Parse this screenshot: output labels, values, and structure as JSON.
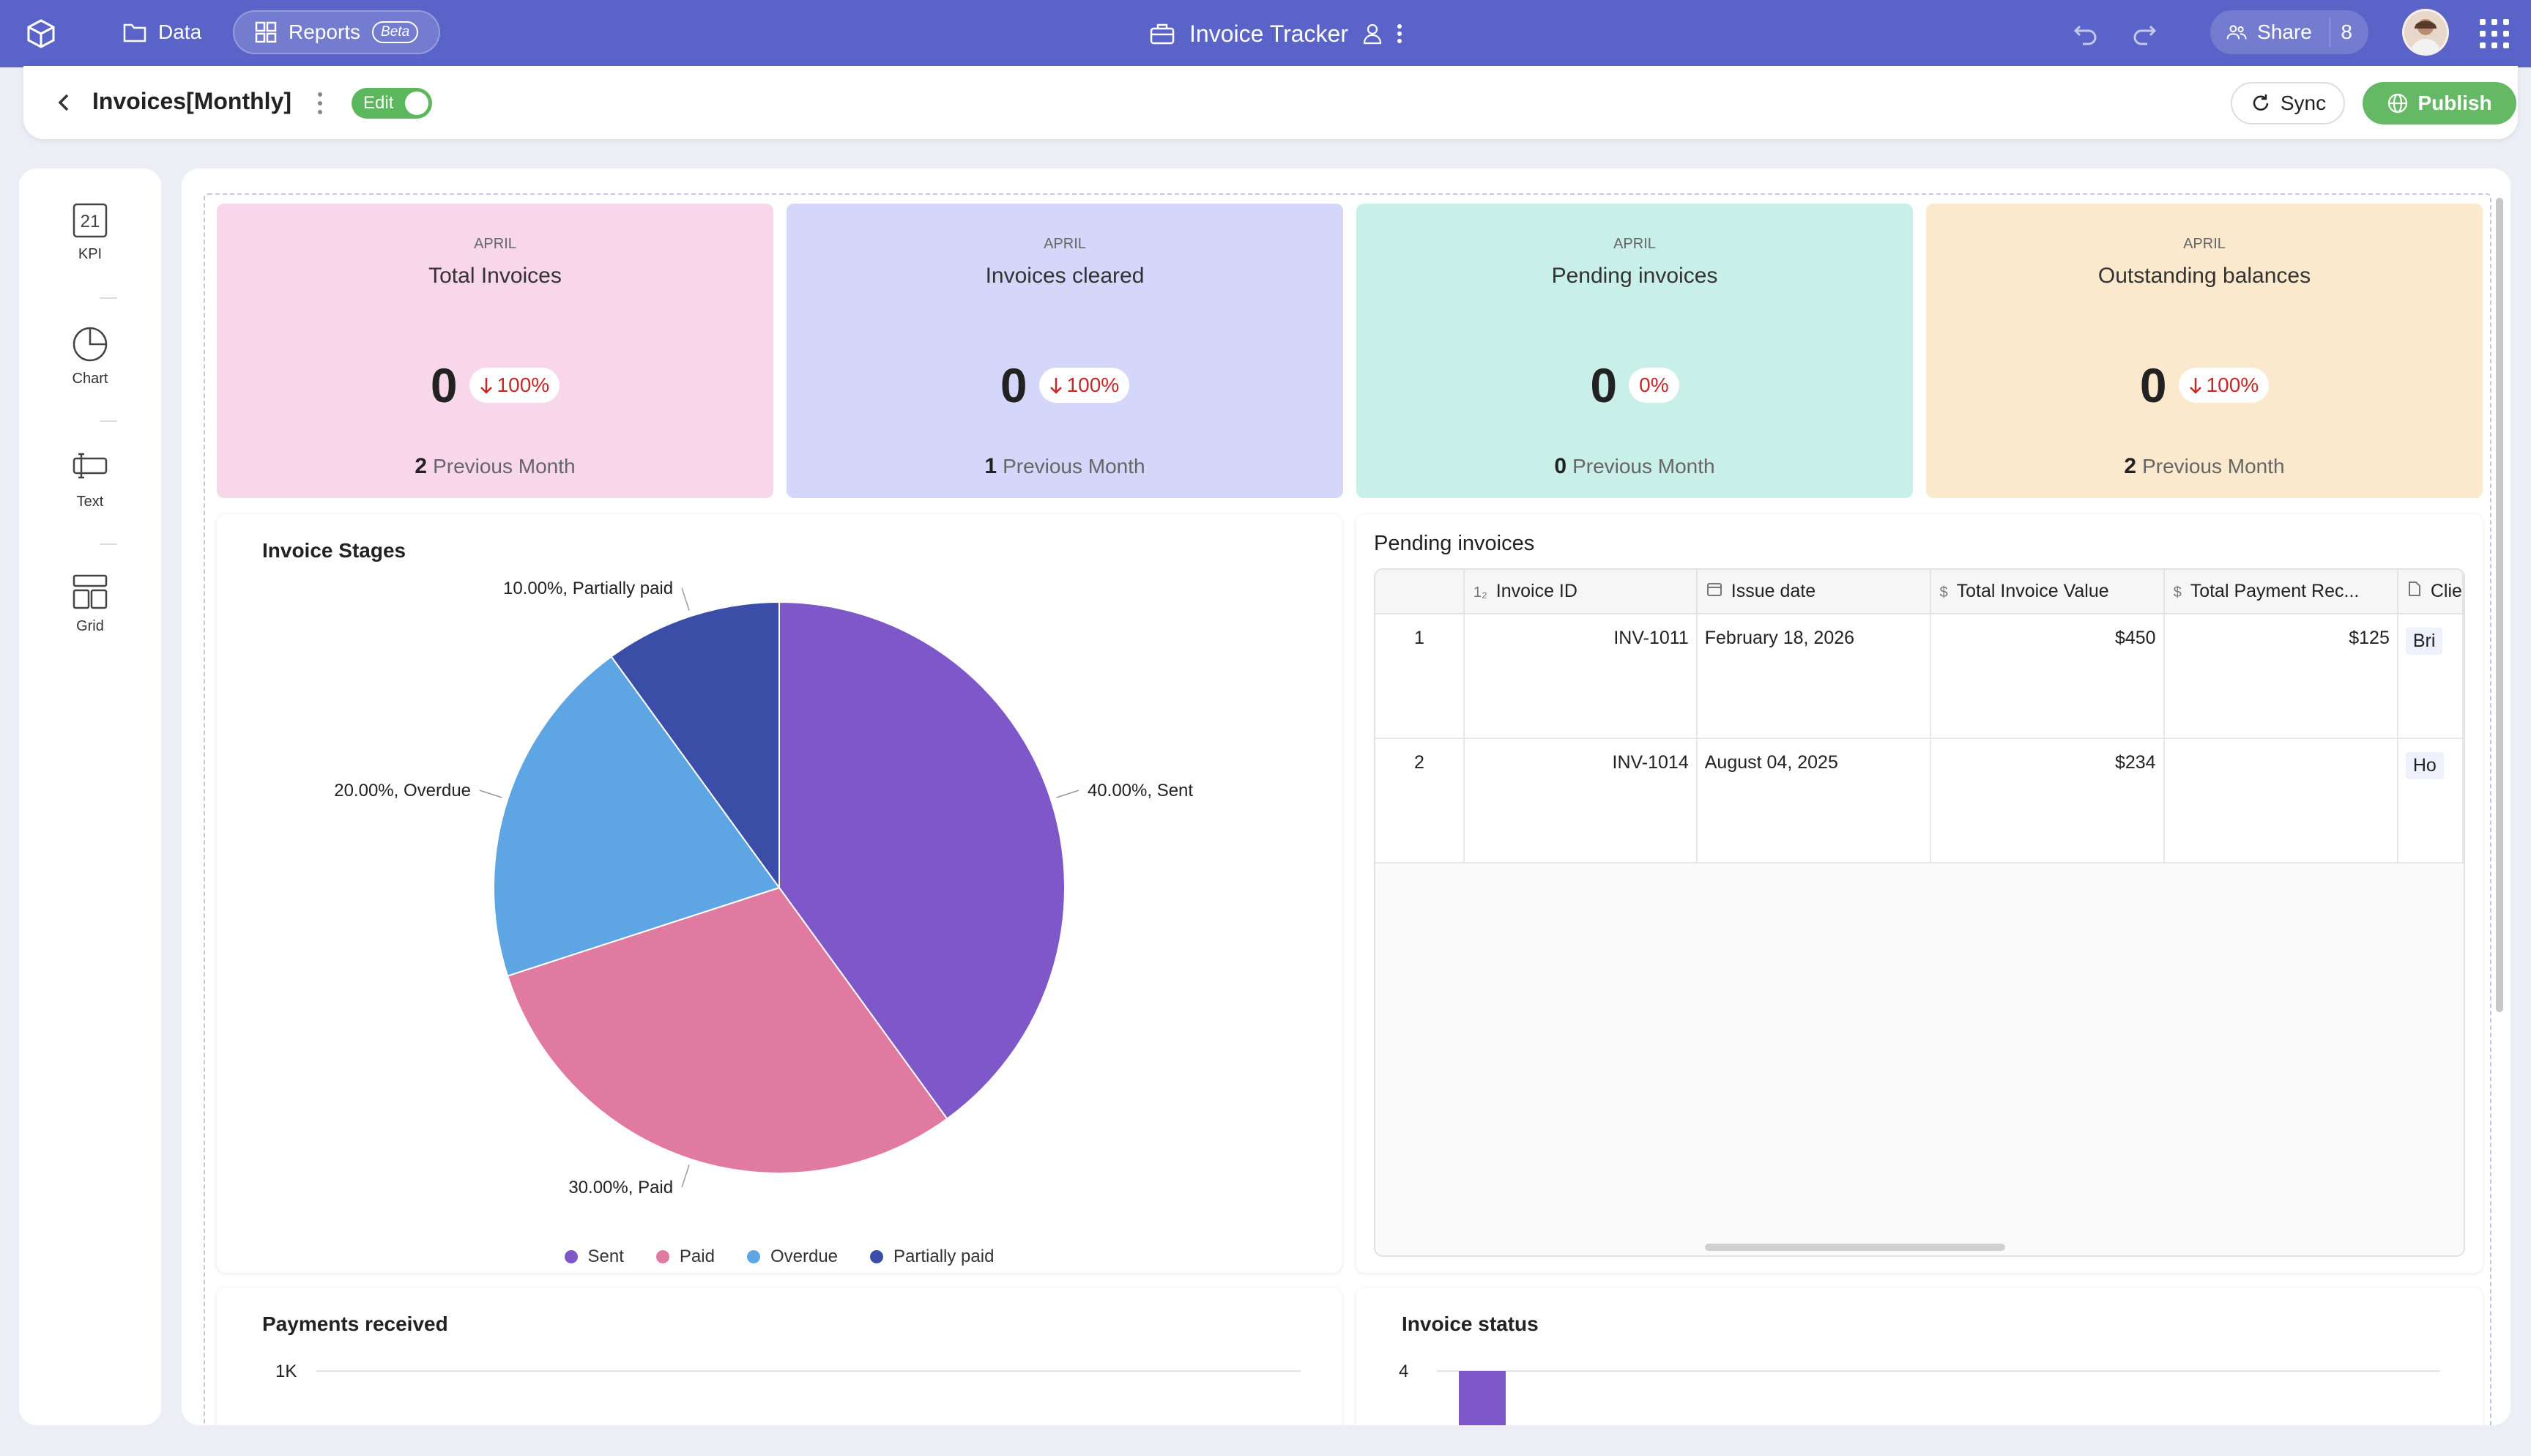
{
  "topbar": {
    "nav_data": "Data",
    "nav_reports": "Reports",
    "beta_badge": "Beta",
    "app_title": "Invoice Tracker",
    "share_label": "Share",
    "share_count": "8"
  },
  "subheader": {
    "title": "Invoices[Monthly]",
    "edit_label": "Edit",
    "sync_label": "Sync",
    "publish_label": "Publish"
  },
  "rail": {
    "kpi_label": "KPI",
    "kpi_icon_text": "21",
    "chart_label": "Chart",
    "text_label": "Text",
    "grid_label": "Grid"
  },
  "kpis": [
    {
      "month": "APRIL",
      "label": "Total Invoices",
      "value": "0",
      "change": "100%",
      "prev_value": "2",
      "prev_label": "Previous Month",
      "bg": "#f8d7ea"
    },
    {
      "month": "APRIL",
      "label": "Invoices cleared",
      "value": "0",
      "change": "100%",
      "prev_value": "1",
      "prev_label": "Previous Month",
      "bg": "#d4d6fa"
    },
    {
      "month": "APRIL",
      "label": "Pending invoices",
      "value": "0",
      "change": "0%",
      "prev_value": "0",
      "prev_label": "Previous Month",
      "bg": "#c8f0e8"
    },
    {
      "month": "APRIL",
      "label": "Outstanding balances",
      "value": "0",
      "change": "100%",
      "prev_value": "2",
      "prev_label": "Previous Month",
      "bg": "#fbe9cd"
    }
  ],
  "stages_card": {
    "title": "Invoice Stages"
  },
  "chart_data": [
    {
      "type": "pie",
      "title": "Invoice Stages",
      "categories": [
        "Sent",
        "Paid",
        "Overdue",
        "Partially paid"
      ],
      "values": [
        40,
        30,
        20,
        10
      ],
      "slice_labels": [
        "40.00%, Sent",
        "30.00%, Paid",
        "20.00%, Overdue",
        "10.00%, Partially paid"
      ],
      "colors": [
        "#7e57c9",
        "#e07aa0",
        "#5ea5e4",
        "#3a4ea8"
      ],
      "legend": "bottom"
    },
    {
      "type": "line",
      "title": "Payments received",
      "y_tick_labels": [
        "1K"
      ]
    },
    {
      "type": "bar",
      "title": "Invoice status",
      "y_tick_labels": [
        "4"
      ],
      "colors": [
        "#7e57c9"
      ]
    }
  ],
  "pending_card": {
    "title": "Pending invoices",
    "columns": [
      "Invoice ID",
      "Issue date",
      "Total Invoice Value",
      "Total Payment Rec...",
      "Clie"
    ],
    "column_icons": [
      "12",
      "calendar",
      "$",
      "$",
      "doc"
    ],
    "rows": [
      {
        "no": "1",
        "id": "INV-1011",
        "date": "February 18, 2026",
        "total": "$450",
        "paid": "$125",
        "client": "Bri"
      },
      {
        "no": "2",
        "id": "INV-1014",
        "date": "August 04, 2025",
        "total": "$234",
        "paid": "",
        "client": "Ho"
      }
    ]
  },
  "payments_card": {
    "title": "Payments received"
  },
  "status_card": {
    "title": "Invoice status"
  }
}
